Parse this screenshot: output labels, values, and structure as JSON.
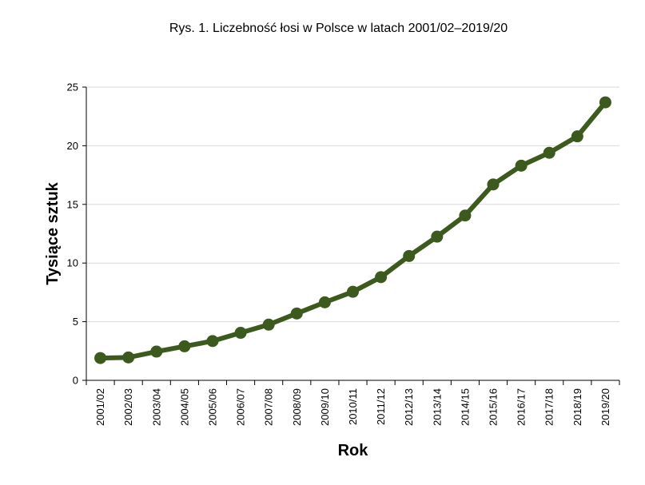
{
  "chart_data": {
    "type": "line",
    "title": "Rys. 1. Liczebność łosi w Polsce w latach 2001/02–2019/20",
    "xlabel": "Rok",
    "ylabel": "Tysiące sztuk",
    "categories": [
      "2001/02",
      "2002/03",
      "2003/04",
      "2004/05",
      "2005/06",
      "2006/07",
      "2007/08",
      "2008/09",
      "2009/10",
      "2010/11",
      "2011/12",
      "2012/13",
      "2013/14",
      "2014/15",
      "2015/16",
      "2016/17",
      "2017/18",
      "2018/19",
      "2019/20"
    ],
    "series": [
      {
        "values": [
          1.9,
          1.95,
          2.45,
          2.9,
          3.35,
          4.05,
          4.75,
          5.7,
          6.65,
          7.55,
          8.8,
          10.6,
          12.25,
          14.05,
          16.7,
          18.3,
          19.4,
          20.8,
          23.7
        ]
      }
    ],
    "yticks": [
      0,
      5,
      10,
      15,
      20,
      25
    ],
    "ylim": [
      0,
      25
    ],
    "grid": "horizontal",
    "line_color": "#3d5a1e"
  }
}
